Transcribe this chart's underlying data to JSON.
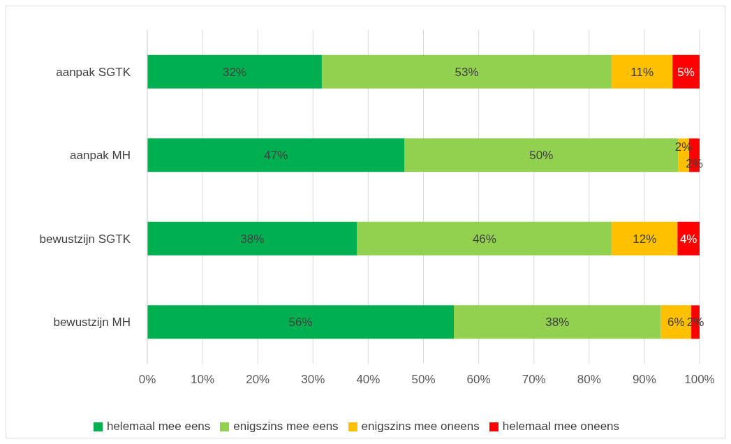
{
  "chart_data": {
    "type": "bar",
    "orientation": "horizontal",
    "stacked": true,
    "categories": [
      "aanpak SGTK",
      "aanpak MH",
      "bewustzijn SGTK",
      "bewustzijn MH"
    ],
    "series": [
      {
        "name": "helemaal mee eens",
        "color": "#00b050",
        "values": [
          31.6,
          46.6,
          38.0,
          55.5
        ],
        "value_labels": [
          "32%",
          "47%",
          "38%",
          "56%"
        ]
      },
      {
        "name": "enigszins mee eens",
        "color": "#92d050",
        "values": [
          52.5,
          49.5,
          46.1,
          37.5
        ],
        "value_labels": [
          "53%",
          "50%",
          "46%",
          "38%"
        ]
      },
      {
        "name": "enigszins mee oneens",
        "color": "#ffc000",
        "values": [
          11.0,
          2.0,
          11.9,
          5.5
        ],
        "value_labels": [
          "11%",
          "2%",
          "12%",
          "6%"
        ]
      },
      {
        "name": "helemaal mee oneens",
        "color": "#ff0000",
        "values": [
          4.9,
          1.9,
          4.0,
          1.5
        ],
        "value_labels": [
          "5%",
          "2%",
          "4%",
          "2%"
        ]
      }
    ],
    "xlim": [
      0,
      100
    ],
    "xticks": [
      {
        "value": 0,
        "label": "0%"
      },
      {
        "value": 10,
        "label": "10%"
      },
      {
        "value": 20,
        "label": "20%"
      },
      {
        "value": 30,
        "label": "30%"
      },
      {
        "value": 40,
        "label": "40%"
      },
      {
        "value": 50,
        "label": "50%"
      },
      {
        "value": 60,
        "label": "60%"
      },
      {
        "value": 70,
        "label": "70%"
      },
      {
        "value": 80,
        "label": "80%"
      },
      {
        "value": 90,
        "label": "90%"
      },
      {
        "value": 100,
        "label": "100%"
      }
    ],
    "grid": "x",
    "legend": "bottom"
  }
}
